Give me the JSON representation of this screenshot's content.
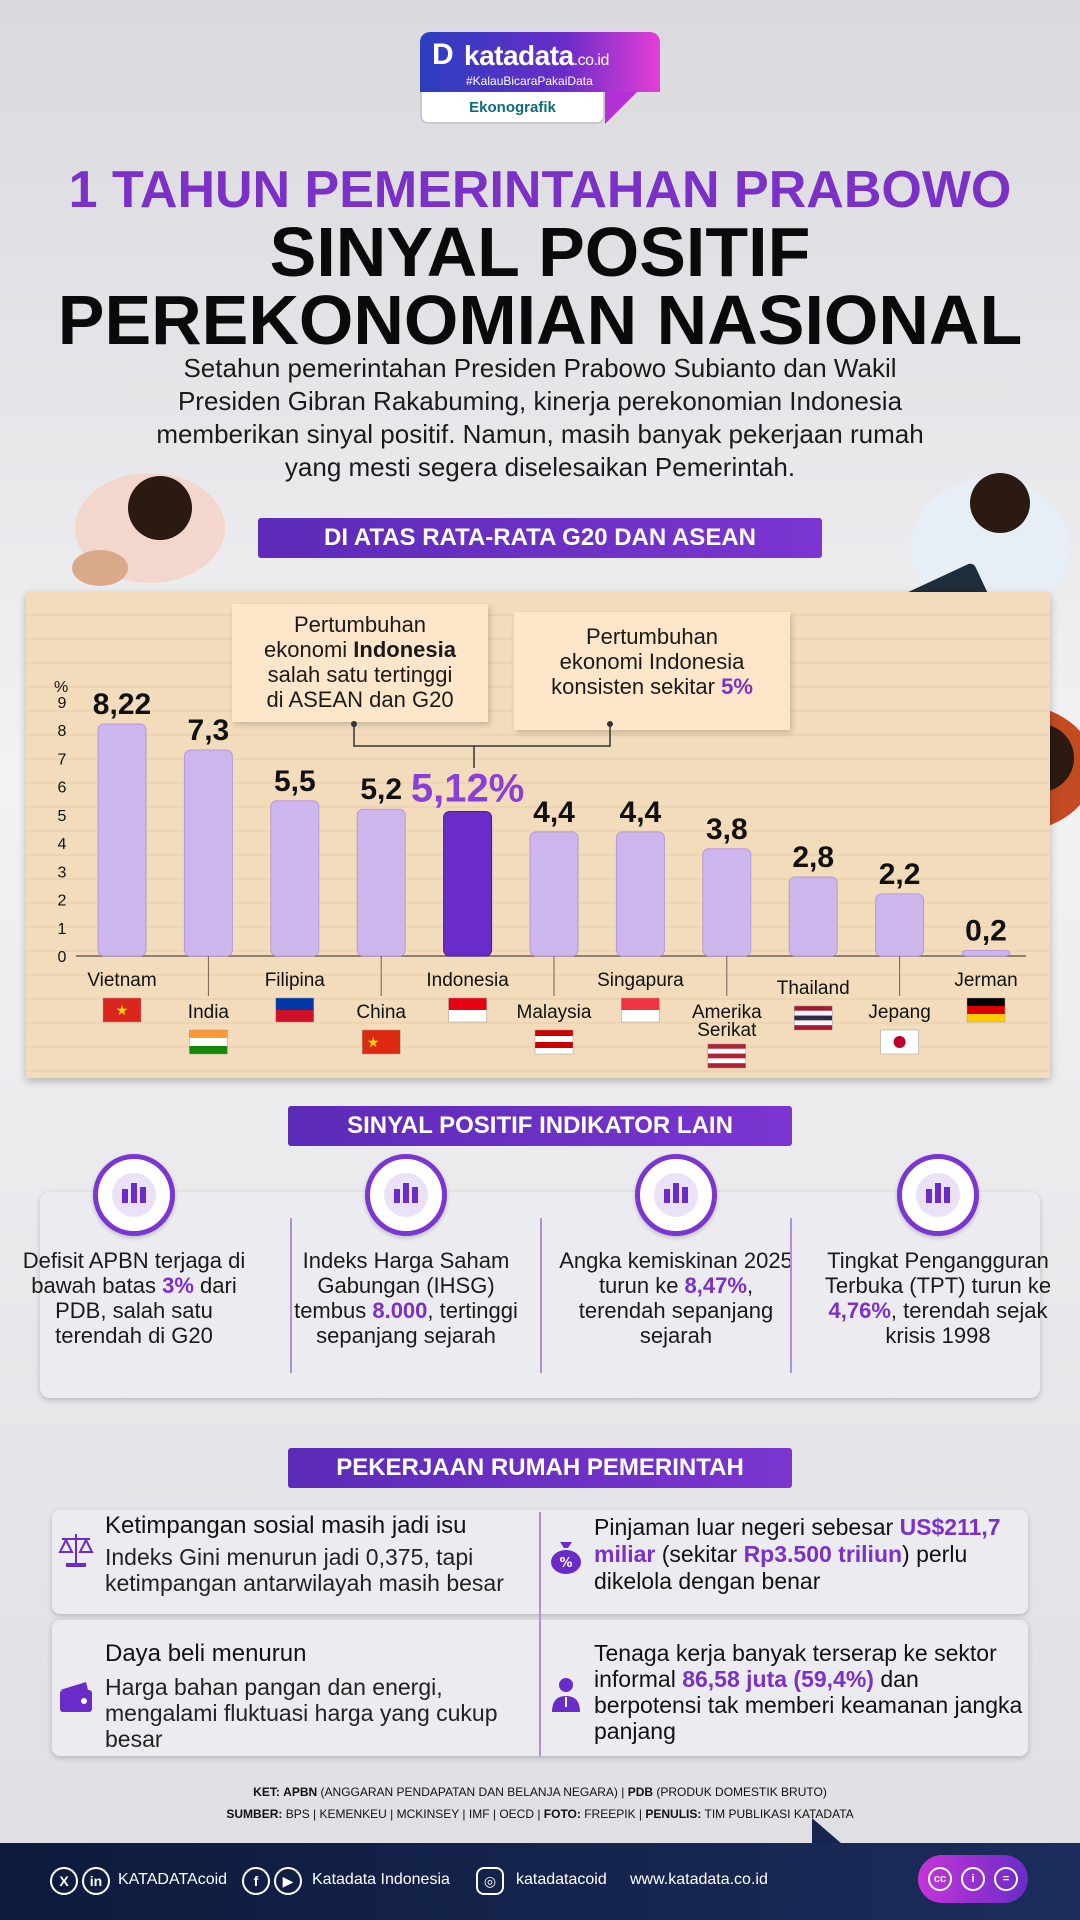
{
  "logo": {
    "mark": "D",
    "name": "katadata",
    "suffix": ".co.id",
    "tagline": "#KalauBicaraPakaiData",
    "section": "Ekonografik"
  },
  "header": {
    "title_line1": "1 TAHUN PEMERINTAHAN PRABOWO",
    "title_line2": "SINYAL POSITIF",
    "title_line3": "PEREKONOMIAN NASIONAL",
    "intro_line1": "Setahun pemerintahan Presiden Prabowo Subianto dan Wakil",
    "intro_line2": "Presiden Gibran Rakabuming, kinerja perekonomian Indonesia",
    "intro_line3": "memberikan sinyal positif. Namun, masih banyak pekerjaan rumah",
    "intro_line4": "yang mesti segera diselesaikan Pemerintah."
  },
  "section1": {
    "label": "DI ATAS RATA-RATA G20 DAN ASEAN",
    "note1": {
      "line1": "Pertumbuhan",
      "line2a": "ekonomi ",
      "line2b": "Indonesia",
      "line3": "salah satu tertinggi",
      "line4": "di ASEAN dan G20"
    },
    "note2": {
      "line1": "Pertumbuhan",
      "line2": "ekonomi Indonesia",
      "line3a": "konsisten sekitar ",
      "line3b": "5%"
    }
  },
  "chart_data": {
    "type": "bar",
    "title": "",
    "ylabel": "%",
    "ylim": [
      0,
      9
    ],
    "yticks": [
      "0",
      "1",
      "2",
      "3",
      "4",
      "5",
      "6",
      "7",
      "8",
      "9"
    ],
    "categories": [
      "Vietnam",
      "India",
      "Filipina",
      "China",
      "Indonesia",
      "Malaysia",
      "Singapura",
      "Amerika Serikat",
      "Thailand",
      "Jepang",
      "Jerman"
    ],
    "values": [
      8.22,
      7.3,
      5.5,
      5.2,
      5.12,
      4.4,
      4.4,
      3.8,
      2.8,
      2.2,
      0.2
    ],
    "value_labels": [
      "8,22",
      "7,3",
      "5,5",
      "5,2",
      "5,12%",
      "4,4",
      "4,4",
      "3,8",
      "2,8",
      "2,2",
      "0,2"
    ],
    "highlight": "Indonesia",
    "colors": {
      "bar": "#cdb6ec",
      "highlight": "#6a2cc8",
      "highlight_label": "#8a3fd6"
    },
    "grid": false
  },
  "section2": {
    "label": "SINYAL POSITIF INDIKATOR LAIN",
    "items": [
      {
        "icon": "money-icon",
        "pre": "Defisit APBN terjaga di bawah batas ",
        "hl": "3%",
        "post": " dari PDB, salah satu terendah di G20"
      },
      {
        "icon": "stock-chart-icon",
        "pre": "Indeks Harga Saham Gabungan (IHSG) tembus ",
        "hl": "8.000",
        "post": ", tertinggi sepanjang sejarah"
      },
      {
        "icon": "poverty-chart-icon",
        "pre": "Angka kemiskinan 2025 turun ke ",
        "hl": "8,47%",
        "post": ", terendah sepanjang sejarah"
      },
      {
        "icon": "unemployment-icon",
        "pre": "Tingkat Pengangguran Terbuka (TPT) turun ke ",
        "hl": "4,76%",
        "post": ", terendah sejak krisis 1998"
      }
    ]
  },
  "section3": {
    "label": "PEKERJAAN RUMAH PEMERINTAH",
    "items": [
      {
        "icon": "scale-icon",
        "title": "Ketimpangan sosial masih jadi isu",
        "body": "Indeks Gini menurun jadi 0,375, tapi ketimpangan antarwilayah masih besar"
      },
      {
        "icon": "money-bag-icon",
        "pre": "Pinjaman luar negeri sebesar ",
        "hl1": "US$211,7 miliar",
        "mid": " (sekitar ",
        "hl2": "Rp3.500 triliun",
        "post": ") perlu dikelola dengan benar"
      },
      {
        "icon": "wallet-icon",
        "title": "Daya beli menurun",
        "body": "Harga bahan pangan dan energi, mengalami fluktuasi harga yang cukup besar"
      },
      {
        "icon": "worker-icon",
        "pre": "Tenaga kerja banyak terserap ke sektor informal ",
        "hl": "86,58 juta (59,4%)",
        "post": " dan berpotensi tak memberi keamanan jangka panjang"
      }
    ]
  },
  "footnotes": {
    "ket_label": "KET:",
    "ket1_b": "APBN",
    "ket1": " (ANGGARAN PENDAPATAN DAN BELANJA NEGARA) | ",
    "ket2_b": "PDB",
    "ket2": " (PRODUK DOMESTIK BRUTO)",
    "src_label": "SUMBER:",
    "src": " BPS | KEMENKEU | MCKINSEY | IMF | OECD | ",
    "foto_label": "FOTO:",
    "foto": " FREEPIK  | ",
    "penulis_label": "PENULIS:",
    "penulis": " TIM PUBLIKASI KATADATA"
  },
  "footer": {
    "handle1": "KATADATAcoid",
    "handle2": "Katadata Indonesia",
    "handle3": "katadatacoid",
    "website": "www.katadata.co.id"
  }
}
